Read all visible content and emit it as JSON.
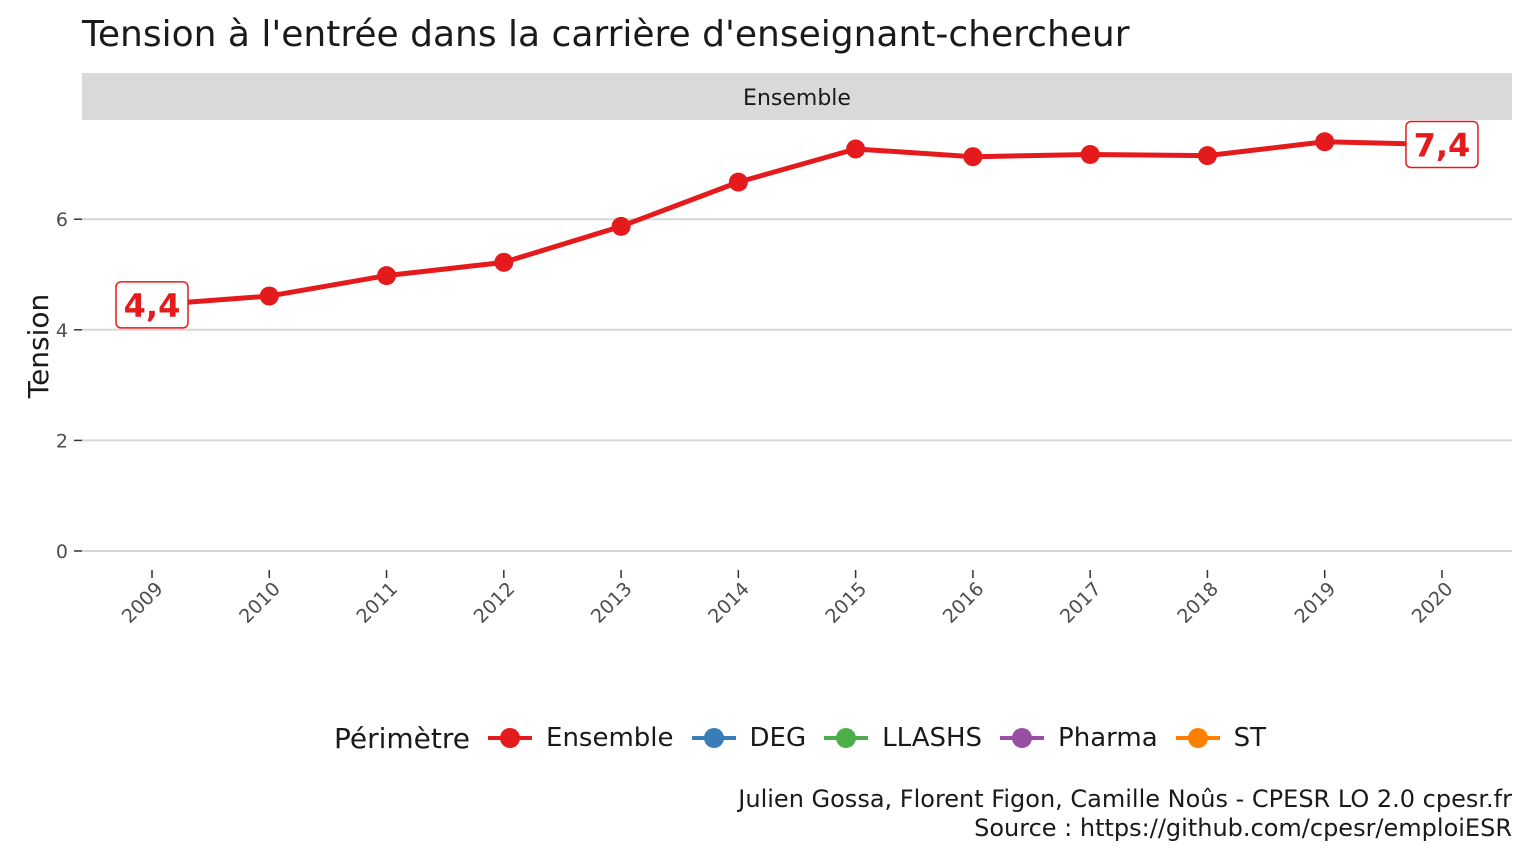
{
  "title": "Tension à l'entrée dans la carrière d'enseignant-chercheur",
  "caption_line1": "Julien Gossa, Florent Figon, Camille Noûs - CPESR LO 2.0 cpesr.fr",
  "caption_line2": "Source : https://github.com/cpesr/emploiESR",
  "legend": {
    "title": "Périmètre",
    "items": [
      {
        "label": "Ensemble",
        "color": "#e41a1c"
      },
      {
        "label": "DEG",
        "color": "#377eb8"
      },
      {
        "label": "LLASHS",
        "color": "#4daf4a"
      },
      {
        "label": "Pharma",
        "color": "#984ea3"
      },
      {
        "label": "ST",
        "color": "#ff7f00"
      }
    ]
  },
  "chart_data": {
    "type": "line",
    "facet": "Ensemble",
    "ylabel": "Tension",
    "xlabel": "",
    "x": [
      "2009",
      "2010",
      "2011",
      "2012",
      "2013",
      "2014",
      "2015",
      "2016",
      "2017",
      "2018",
      "2019",
      "2020"
    ],
    "ylim": [
      0,
      7.6
    ],
    "yticks": [
      0,
      2,
      4,
      6
    ],
    "series": [
      {
        "name": "Ensemble",
        "color": "#e41a1c",
        "values": [
          4.45,
          4.61,
          4.98,
          5.22,
          5.87,
          6.67,
          7.27,
          7.13,
          7.17,
          7.15,
          7.4,
          7.35
        ]
      }
    ],
    "annotations": [
      {
        "x": "2009",
        "label": "4,4"
      },
      {
        "x": "2020",
        "label": "7,4"
      }
    ],
    "grid": true
  }
}
